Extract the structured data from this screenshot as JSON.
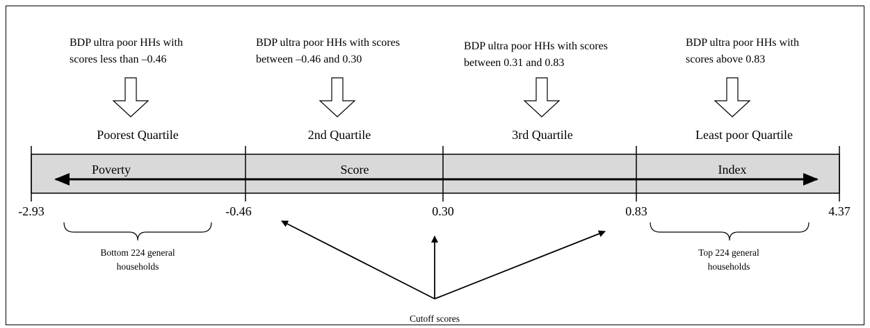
{
  "quartile_notes": [
    {
      "lines": [
        "BDP ultra poor HHs with",
        "scores less than –0.46"
      ],
      "label": "Poorest Quartile"
    },
    {
      "lines": [
        "BDP ultra poor HHs with scores",
        "between  –0.46 and 0.30"
      ],
      "label": "2nd Quartile"
    },
    {
      "lines": [
        "BDP ultra poor HHs with scores",
        "between 0.31 and 0.83"
      ],
      "label": "3rd Quartile"
    },
    {
      "lines": [
        "BDP ultra poor HHs with",
        "scores above 0.83"
      ],
      "label": "Least poor Quartile"
    }
  ],
  "bar_labels": [
    "Poverty",
    "Score",
    "Index"
  ],
  "cutpoints": [
    "-2.93",
    "-0.46",
    "0.30",
    "0.83",
    "4.37"
  ],
  "bottom_notes": [
    {
      "lines": [
        "Bottom 224 general",
        "households"
      ]
    },
    {
      "lines": [
        "Top 224 general",
        "households"
      ]
    }
  ],
  "cutoff_label": "Cutoff scores"
}
